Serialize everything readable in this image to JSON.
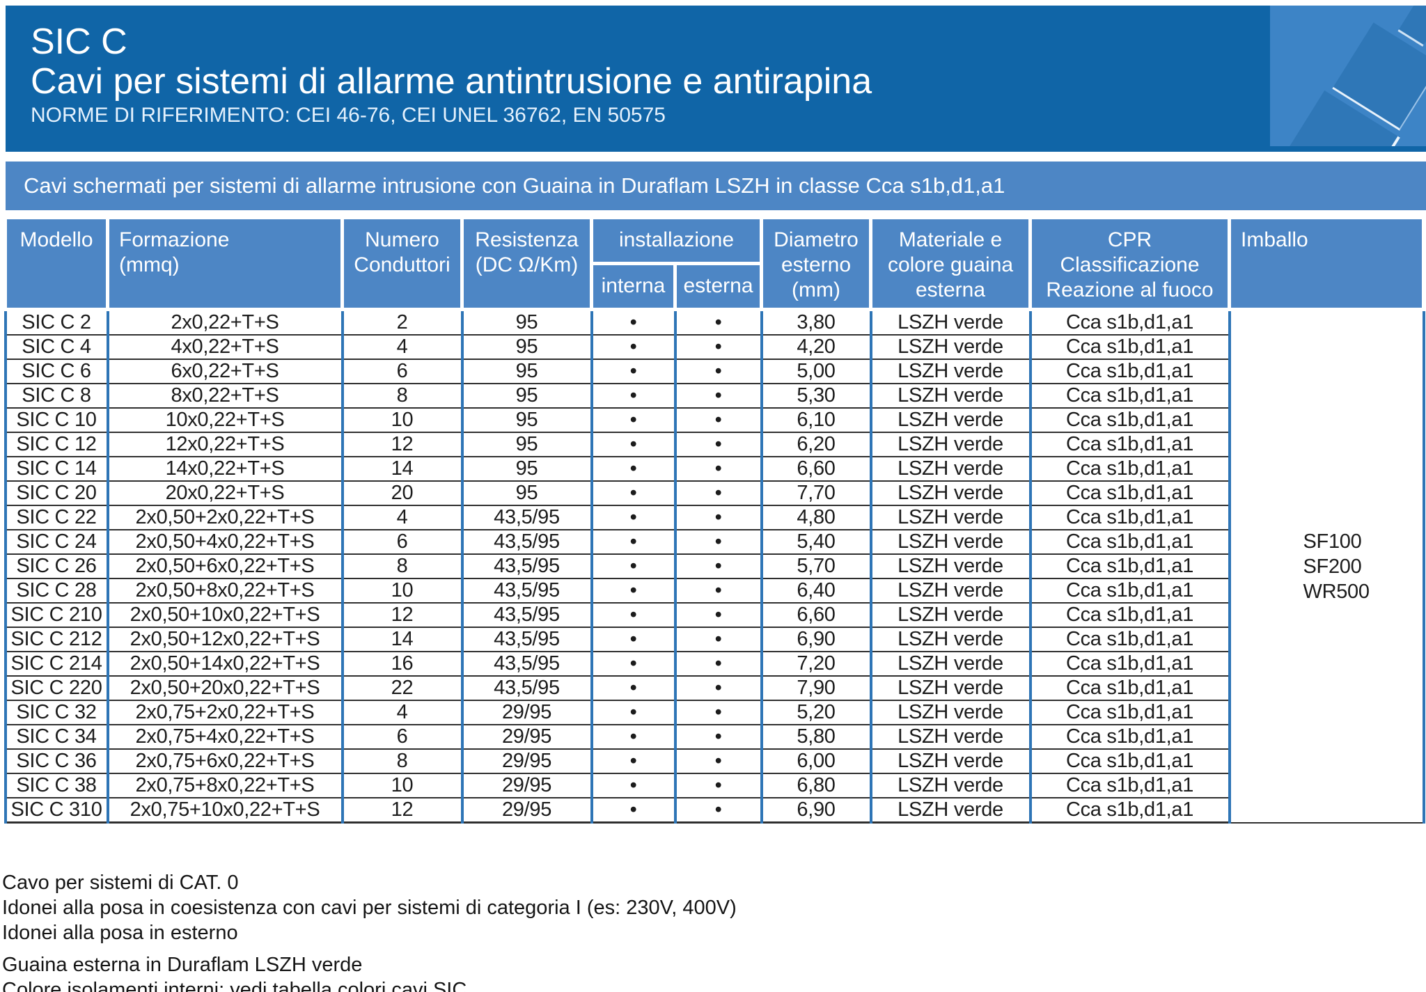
{
  "header": {
    "product": "SIC C",
    "title": "Cavi per sistemi di allarme antintrusione e antirapina",
    "norms": "NORME DI RIFERIMENTO: CEI 46-76, CEI UNEL 36762, EN 50575"
  },
  "subtitle_band": "Cavi schermati per sistemi di allarme intrusione con Guaina in Duraflam LSZH in classe Cca s1b,d1,a1",
  "table": {
    "columns": {
      "modello": "Modello",
      "formazione": "Formazione\n(mmq)",
      "numero": "Numero\nConduttori",
      "resistenza": "Resistenza\n(DC Ω/Km)",
      "installazione": "installazione",
      "interna": "interna",
      "esterna": "esterna",
      "diametro": "Diametro\nesterno\n(mm)",
      "materiale": "Materiale e\ncolore guaina\nesterna",
      "cpr": "CPR\nClassificazione\nReazione al fuoco",
      "imballo": "Imballo"
    },
    "rows": [
      {
        "model": "SIC C 2",
        "formation": "2x0,22+T+S",
        "conductors": "2",
        "resistance": "95",
        "interna": "•",
        "esterna": "•",
        "diameter": "3,80",
        "sheath": "LSZH verde",
        "cpr": "Cca s1b,d1,a1"
      },
      {
        "model": "SIC C 4",
        "formation": "4x0,22+T+S",
        "conductors": "4",
        "resistance": "95",
        "interna": "•",
        "esterna": "•",
        "diameter": "4,20",
        "sheath": "LSZH verde",
        "cpr": "Cca s1b,d1,a1"
      },
      {
        "model": "SIC C 6",
        "formation": "6x0,22+T+S",
        "conductors": "6",
        "resistance": "95",
        "interna": "•",
        "esterna": "•",
        "diameter": "5,00",
        "sheath": "LSZH verde",
        "cpr": "Cca s1b,d1,a1"
      },
      {
        "model": "SIC C 8",
        "formation": "8x0,22+T+S",
        "conductors": "8",
        "resistance": "95",
        "interna": "•",
        "esterna": "•",
        "diameter": "5,30",
        "sheath": "LSZH verde",
        "cpr": "Cca s1b,d1,a1"
      },
      {
        "model": "SIC C 10",
        "formation": "10x0,22+T+S",
        "conductors": "10",
        "resistance": "95",
        "interna": "•",
        "esterna": "•",
        "diameter": "6,10",
        "sheath": "LSZH verde",
        "cpr": "Cca s1b,d1,a1"
      },
      {
        "model": "SIC C 12",
        "formation": "12x0,22+T+S",
        "conductors": "12",
        "resistance": "95",
        "interna": "•",
        "esterna": "•",
        "diameter": "6,20",
        "sheath": "LSZH verde",
        "cpr": "Cca s1b,d1,a1"
      },
      {
        "model": "SIC C 14",
        "formation": "14x0,22+T+S",
        "conductors": "14",
        "resistance": "95",
        "interna": "•",
        "esterna": "•",
        "diameter": "6,60",
        "sheath": "LSZH verde",
        "cpr": "Cca s1b,d1,a1"
      },
      {
        "model": "SIC C 20",
        "formation": "20x0,22+T+S",
        "conductors": "20",
        "resistance": "95",
        "interna": "•",
        "esterna": "•",
        "diameter": "7,70",
        "sheath": "LSZH verde",
        "cpr": "Cca s1b,d1,a1"
      },
      {
        "model": "SIC C 22",
        "formation": "2x0,50+2x0,22+T+S",
        "conductors": "4",
        "resistance": "43,5/95",
        "interna": "•",
        "esterna": "•",
        "diameter": "4,80",
        "sheath": "LSZH verde",
        "cpr": "Cca s1b,d1,a1"
      },
      {
        "model": "SIC C 24",
        "formation": "2x0,50+4x0,22+T+S",
        "conductors": "6",
        "resistance": "43,5/95",
        "interna": "•",
        "esterna": "•",
        "diameter": "5,40",
        "sheath": "LSZH verde",
        "cpr": "Cca s1b,d1,a1"
      },
      {
        "model": "SIC C 26",
        "formation": "2x0,50+6x0,22+T+S",
        "conductors": "8",
        "resistance": "43,5/95",
        "interna": "•",
        "esterna": "•",
        "diameter": "5,70",
        "sheath": "LSZH verde",
        "cpr": "Cca s1b,d1,a1"
      },
      {
        "model": "SIC C 28",
        "formation": "2x0,50+8x0,22+T+S",
        "conductors": "10",
        "resistance": "43,5/95",
        "interna": "•",
        "esterna": "•",
        "diameter": "6,40",
        "sheath": "LSZH verde",
        "cpr": "Cca s1b,d1,a1"
      },
      {
        "model": "SIC C 210",
        "formation": "2x0,50+10x0,22+T+S",
        "conductors": "12",
        "resistance": "43,5/95",
        "interna": "•",
        "esterna": "•",
        "diameter": "6,60",
        "sheath": "LSZH verde",
        "cpr": "Cca s1b,d1,a1"
      },
      {
        "model": "SIC C 212",
        "formation": "2x0,50+12x0,22+T+S",
        "conductors": "14",
        "resistance": "43,5/95",
        "interna": "•",
        "esterna": "•",
        "diameter": "6,90",
        "sheath": "LSZH verde",
        "cpr": "Cca s1b,d1,a1"
      },
      {
        "model": "SIC C 214",
        "formation": "2x0,50+14x0,22+T+S",
        "conductors": "16",
        "resistance": "43,5/95",
        "interna": "•",
        "esterna": "•",
        "diameter": "7,20",
        "sheath": "LSZH verde",
        "cpr": "Cca s1b,d1,a1"
      },
      {
        "model": "SIC C 220",
        "formation": "2x0,50+20x0,22+T+S",
        "conductors": "22",
        "resistance": "43,5/95",
        "interna": "•",
        "esterna": "•",
        "diameter": "7,90",
        "sheath": "LSZH verde",
        "cpr": "Cca s1b,d1,a1"
      },
      {
        "model": "SIC C 32",
        "formation": "2x0,75+2x0,22+T+S",
        "conductors": "4",
        "resistance": "29/95",
        "interna": "•",
        "esterna": "•",
        "diameter": "5,20",
        "sheath": "LSZH verde",
        "cpr": "Cca s1b,d1,a1"
      },
      {
        "model": "SIC C 34",
        "formation": "2x0,75+4x0,22+T+S",
        "conductors": "6",
        "resistance": "29/95",
        "interna": "•",
        "esterna": "•",
        "diameter": "5,80",
        "sheath": "LSZH verde",
        "cpr": "Cca s1b,d1,a1"
      },
      {
        "model": "SIC C 36",
        "formation": "2x0,75+6x0,22+T+S",
        "conductors": "8",
        "resistance": "29/95",
        "interna": "•",
        "esterna": "•",
        "diameter": "6,00",
        "sheath": "LSZH verde",
        "cpr": "Cca s1b,d1,a1"
      },
      {
        "model": "SIC C 38",
        "formation": "2x0,75+8x0,22+T+S",
        "conductors": "10",
        "resistance": "29/95",
        "interna": "•",
        "esterna": "•",
        "diameter": "6,80",
        "sheath": "LSZH verde",
        "cpr": "Cca s1b,d1,a1"
      },
      {
        "model": "SIC C 310",
        "formation": "2x0,75+10x0,22+T+S",
        "conductors": "12",
        "resistance": "29/95",
        "interna": "•",
        "esterna": "•",
        "diameter": "6,90",
        "sheath": "LSZH verde",
        "cpr": "Cca s1b,d1,a1"
      }
    ],
    "imballo": [
      "SF100",
      "SF200",
      "WR500"
    ]
  },
  "notes": [
    "Cavo per sistemi di CAT. 0",
    "Idonei alla posa in coesistenza con cavi per sistemi di categoria I (es: 230V, 400V)",
    "Idonei alla posa in esterno",
    "Guaina esterna in Duraflam LSZH verde",
    "Colore isolamenti interni: vedi tabella colori cavi SIC"
  ],
  "colors": {
    "banner_blue": "#1065a7",
    "panel_blue": "#4d86c5",
    "grid_blue": "#2e75b6",
    "corner_blue": "#3d84c6"
  }
}
